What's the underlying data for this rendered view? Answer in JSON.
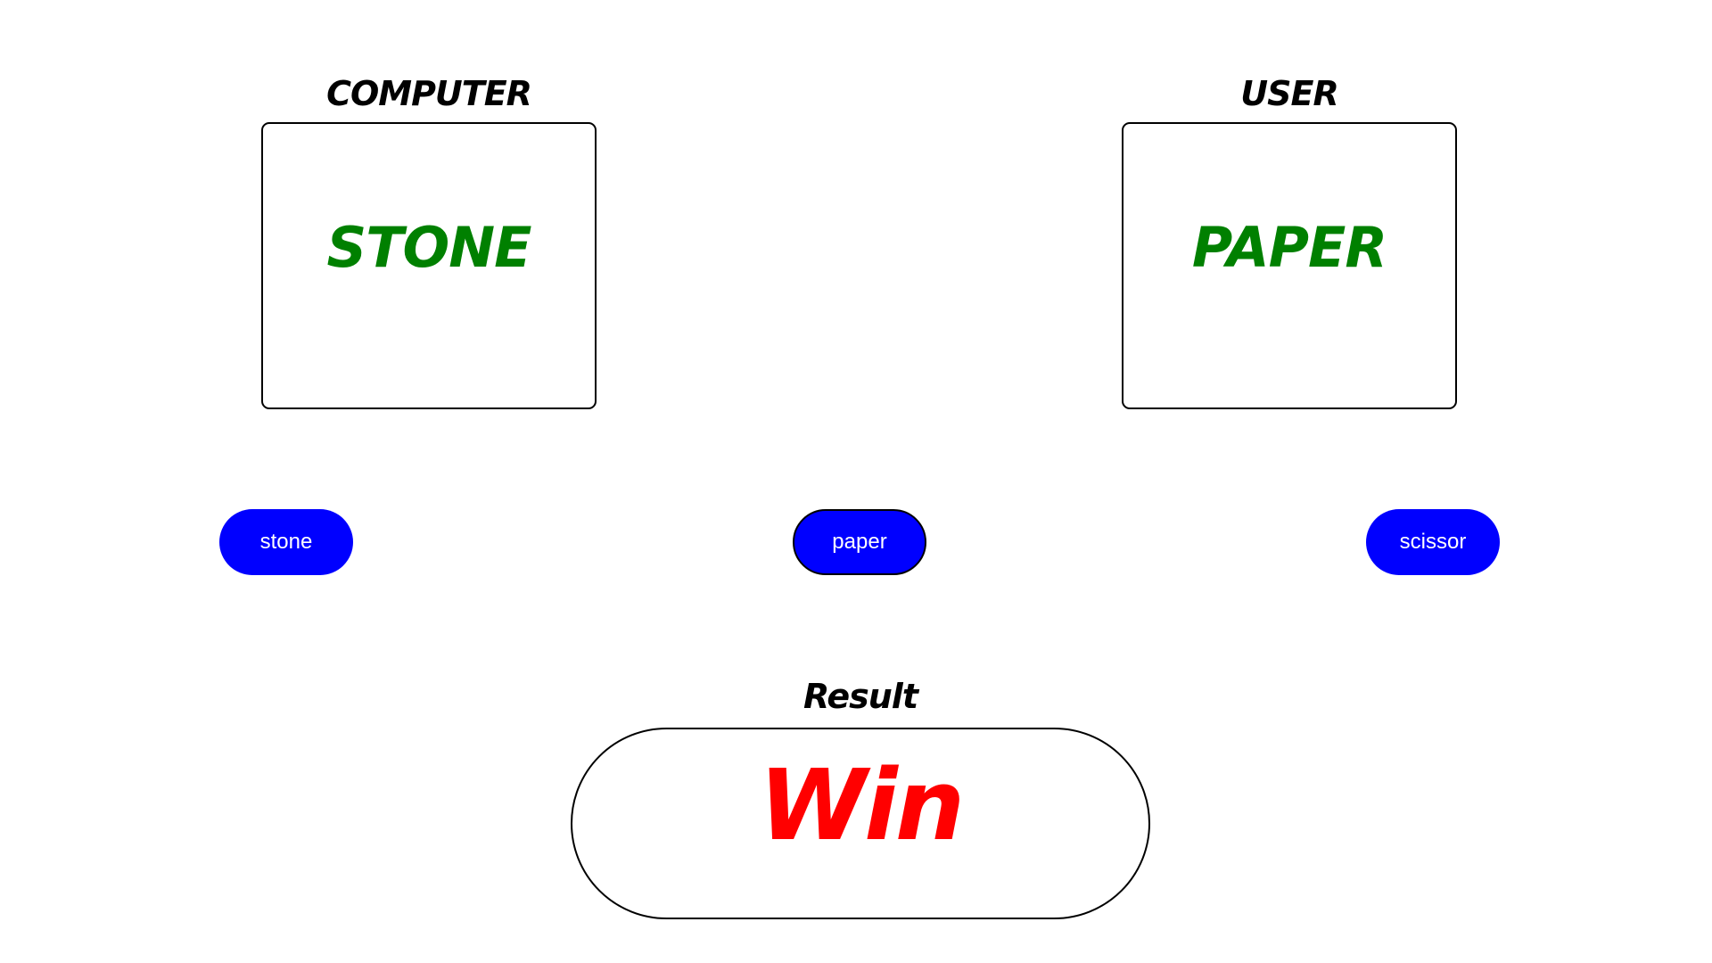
{
  "computer": {
    "title": "COMPUTER",
    "choice": "STONE"
  },
  "user": {
    "title": "USER",
    "choice": "PAPER"
  },
  "buttons": [
    {
      "label": "stone"
    },
    {
      "label": "paper"
    },
    {
      "label": "scissor"
    }
  ],
  "result": {
    "title": "Result",
    "value": "Win"
  },
  "colors": {
    "choice_text": "#008000",
    "button_bg": "#0000ff",
    "button_text": "#ffffff",
    "result_text": "#ff0000"
  }
}
